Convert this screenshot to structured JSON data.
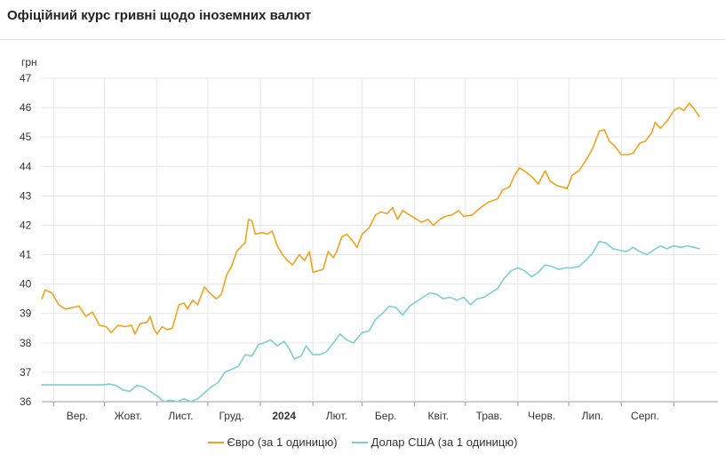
{
  "header": {
    "title": "Офіційний курс гривні щодо іноземних валют"
  },
  "colors": {
    "euro": "#f0a31e",
    "usd": "#7ccfcf",
    "grid": "#e6e6e6",
    "axis": "#999999"
  },
  "chart_data": {
    "type": "line",
    "title": "Офіційний курс гривні щодо іноземних валют",
    "ylabel": "грн",
    "ylim": [
      36,
      47
    ],
    "yticks": [
      36,
      37,
      38,
      39,
      40,
      41,
      42,
      43,
      44,
      45,
      46,
      47
    ],
    "xlim": [
      "2023-08-25",
      "2024-09-27"
    ],
    "grid": true,
    "legend_position": "bottom-center",
    "x_tick_labels": [
      {
        "label": "Вер.",
        "date": "2023-09-15",
        "bold": false
      },
      {
        "label": "Жовт.",
        "date": "2023-10-15",
        "bold": false
      },
      {
        "label": "Лист.",
        "date": "2023-11-15",
        "bold": false
      },
      {
        "label": "Груд.",
        "date": "2023-12-15",
        "bold": false
      },
      {
        "label": "2024",
        "date": "2024-01-15",
        "bold": true
      },
      {
        "label": "Лют.",
        "date": "2024-02-15",
        "bold": false
      },
      {
        "label": "Бер.",
        "date": "2024-03-15",
        "bold": false
      },
      {
        "label": "Квіт.",
        "date": "2024-04-15",
        "bold": false
      },
      {
        "label": "Трав.",
        "date": "2024-05-15",
        "bold": false
      },
      {
        "label": "Черв.",
        "date": "2024-06-15",
        "bold": false
      },
      {
        "label": "Лип.",
        "date": "2024-07-15",
        "bold": false
      },
      {
        "label": "Серп.",
        "date": "2024-08-15",
        "bold": false
      }
    ],
    "x_gridlines": [
      "2023-09-01",
      "2023-10-01",
      "2023-11-01",
      "2023-12-01",
      "2024-01-01",
      "2024-02-01",
      "2024-03-01",
      "2024-04-01",
      "2024-05-01",
      "2024-06-01",
      "2024-07-01",
      "2024-08-01",
      "2024-09-01"
    ],
    "series": [
      {
        "name": "Євро (за 1 одиницю)",
        "color": "#f0a31e",
        "points": [
          [
            "2023-08-25",
            39.5
          ],
          [
            "2023-08-27",
            39.8
          ],
          [
            "2023-08-31",
            39.7
          ],
          [
            "2023-09-04",
            39.3
          ],
          [
            "2023-09-08",
            39.15
          ],
          [
            "2023-09-12",
            39.2
          ],
          [
            "2023-09-16",
            39.25
          ],
          [
            "2023-09-20",
            38.9
          ],
          [
            "2023-09-24",
            39.05
          ],
          [
            "2023-09-28",
            38.6
          ],
          [
            "2023-10-02",
            38.55
          ],
          [
            "2023-10-05",
            38.35
          ],
          [
            "2023-10-09",
            38.6
          ],
          [
            "2023-10-13",
            38.55
          ],
          [
            "2023-10-17",
            38.6
          ],
          [
            "2023-10-19",
            38.3
          ],
          [
            "2023-10-22",
            38.65
          ],
          [
            "2023-10-26",
            38.7
          ],
          [
            "2023-10-28",
            38.9
          ],
          [
            "2023-10-30",
            38.5
          ],
          [
            "2023-11-01",
            38.3
          ],
          [
            "2023-11-04",
            38.55
          ],
          [
            "2023-11-07",
            38.45
          ],
          [
            "2023-11-10",
            38.5
          ],
          [
            "2023-11-14",
            39.3
          ],
          [
            "2023-11-17",
            39.35
          ],
          [
            "2023-11-19",
            39.15
          ],
          [
            "2023-11-22",
            39.45
          ],
          [
            "2023-11-25",
            39.3
          ],
          [
            "2023-11-27",
            39.6
          ],
          [
            "2023-11-29",
            39.9
          ],
          [
            "2023-12-02",
            39.7
          ],
          [
            "2023-12-06",
            39.5
          ],
          [
            "2023-12-09",
            39.65
          ],
          [
            "2023-12-12",
            40.3
          ],
          [
            "2023-12-15",
            40.6
          ],
          [
            "2023-12-18",
            41.1
          ],
          [
            "2023-12-21",
            41.3
          ],
          [
            "2023-12-23",
            41.4
          ],
          [
            "2023-12-25",
            42.2
          ],
          [
            "2023-12-27",
            42.15
          ],
          [
            "2023-12-29",
            41.7
          ],
          [
            "2024-01-02",
            41.75
          ],
          [
            "2024-01-05",
            41.7
          ],
          [
            "2024-01-08",
            41.8
          ],
          [
            "2024-01-11",
            41.3
          ],
          [
            "2024-01-14",
            41.0
          ],
          [
            "2024-01-17",
            40.8
          ],
          [
            "2024-01-20",
            40.65
          ],
          [
            "2024-01-24",
            41.0
          ],
          [
            "2024-01-27",
            40.8
          ],
          [
            "2024-01-30",
            41.1
          ],
          [
            "2024-02-01",
            40.4
          ],
          [
            "2024-02-04",
            40.45
          ],
          [
            "2024-02-07",
            40.5
          ],
          [
            "2024-02-10",
            41.1
          ],
          [
            "2024-02-13",
            40.9
          ],
          [
            "2024-02-15",
            41.1
          ],
          [
            "2024-02-18",
            41.6
          ],
          [
            "2024-02-21",
            41.7
          ],
          [
            "2024-02-24",
            41.5
          ],
          [
            "2024-02-27",
            41.25
          ],
          [
            "2024-03-01",
            41.7
          ],
          [
            "2024-03-05",
            41.9
          ],
          [
            "2024-03-09",
            42.35
          ],
          [
            "2024-03-12",
            42.45
          ],
          [
            "2024-03-16",
            42.4
          ],
          [
            "2024-03-19",
            42.6
          ],
          [
            "2024-03-22",
            42.2
          ],
          [
            "2024-03-25",
            42.5
          ],
          [
            "2024-03-29",
            42.35
          ],
          [
            "2024-04-01",
            42.25
          ],
          [
            "2024-04-05",
            42.1
          ],
          [
            "2024-04-09",
            42.2
          ],
          [
            "2024-04-12",
            42.0
          ],
          [
            "2024-04-16",
            42.2
          ],
          [
            "2024-04-19",
            42.3
          ],
          [
            "2024-04-23",
            42.35
          ],
          [
            "2024-04-27",
            42.5
          ],
          [
            "2024-04-30",
            42.3
          ],
          [
            "2024-05-05",
            42.35
          ],
          [
            "2024-05-10",
            42.6
          ],
          [
            "2024-05-15",
            42.8
          ],
          [
            "2024-05-20",
            42.9
          ],
          [
            "2024-05-23",
            43.2
          ],
          [
            "2024-05-27",
            43.3
          ],
          [
            "2024-05-30",
            43.7
          ],
          [
            "2024-06-02",
            43.95
          ],
          [
            "2024-06-06",
            43.8
          ],
          [
            "2024-06-10",
            43.6
          ],
          [
            "2024-06-13",
            43.4
          ],
          [
            "2024-06-17",
            43.85
          ],
          [
            "2024-06-20",
            43.5
          ],
          [
            "2024-06-24",
            43.35
          ],
          [
            "2024-06-27",
            43.3
          ],
          [
            "2024-06-30",
            43.25
          ],
          [
            "2024-07-03",
            43.7
          ],
          [
            "2024-07-07",
            43.85
          ],
          [
            "2024-07-11",
            44.2
          ],
          [
            "2024-07-15",
            44.6
          ],
          [
            "2024-07-19",
            45.2
          ],
          [
            "2024-07-22",
            45.25
          ],
          [
            "2024-07-25",
            44.85
          ],
          [
            "2024-07-28",
            44.7
          ],
          [
            "2024-08-01",
            44.4
          ],
          [
            "2024-08-05",
            44.4
          ],
          [
            "2024-08-08",
            44.45
          ],
          [
            "2024-08-12",
            44.8
          ],
          [
            "2024-08-15",
            44.85
          ],
          [
            "2024-08-19",
            45.15
          ],
          [
            "2024-08-21",
            45.5
          ],
          [
            "2024-08-24",
            45.3
          ],
          [
            "2024-08-28",
            45.55
          ],
          [
            "2024-09-01",
            45.9
          ],
          [
            "2024-09-04",
            46.0
          ],
          [
            "2024-09-07",
            45.9
          ],
          [
            "2024-09-10",
            46.15
          ],
          [
            "2024-09-13",
            45.95
          ],
          [
            "2024-09-16",
            45.7
          ]
        ]
      },
      {
        "name": "Долар США (за 1 одиницю)",
        "color": "#7ccfcf",
        "points": [
          [
            "2023-08-25",
            36.57
          ],
          [
            "2023-09-01",
            36.57
          ],
          [
            "2023-09-10",
            36.57
          ],
          [
            "2023-09-20",
            36.57
          ],
          [
            "2023-09-30",
            36.57
          ],
          [
            "2023-10-04",
            36.6
          ],
          [
            "2023-10-08",
            36.55
          ],
          [
            "2023-10-12",
            36.4
          ],
          [
            "2023-10-16",
            36.35
          ],
          [
            "2023-10-20",
            36.55
          ],
          [
            "2023-10-24",
            36.5
          ],
          [
            "2023-10-28",
            36.35
          ],
          [
            "2023-11-01",
            36.2
          ],
          [
            "2023-11-05",
            36.0
          ],
          [
            "2023-11-09",
            36.05
          ],
          [
            "2023-11-13",
            36.0
          ],
          [
            "2023-11-17",
            36.1
          ],
          [
            "2023-11-21",
            36.0
          ],
          [
            "2023-11-25",
            36.1
          ],
          [
            "2023-11-29",
            36.3
          ],
          [
            "2023-12-03",
            36.5
          ],
          [
            "2023-12-07",
            36.65
          ],
          [
            "2023-12-11",
            37.0
          ],
          [
            "2023-12-15",
            37.1
          ],
          [
            "2023-12-19",
            37.2
          ],
          [
            "2023-12-23",
            37.6
          ],
          [
            "2023-12-27",
            37.55
          ],
          [
            "2023-12-31",
            37.95
          ],
          [
            "2024-01-03",
            38.0
          ],
          [
            "2024-01-07",
            38.1
          ],
          [
            "2024-01-11",
            37.9
          ],
          [
            "2024-01-15",
            38.05
          ],
          [
            "2024-01-18",
            37.8
          ],
          [
            "2024-01-21",
            37.45
          ],
          [
            "2024-01-25",
            37.55
          ],
          [
            "2024-01-28",
            37.9
          ],
          [
            "2024-02-01",
            37.6
          ],
          [
            "2024-02-05",
            37.6
          ],
          [
            "2024-02-09",
            37.7
          ],
          [
            "2024-02-13",
            38.0
          ],
          [
            "2024-02-17",
            38.3
          ],
          [
            "2024-02-21",
            38.1
          ],
          [
            "2024-02-25",
            38.0
          ],
          [
            "2024-03-01",
            38.35
          ],
          [
            "2024-03-05",
            38.4
          ],
          [
            "2024-03-09",
            38.8
          ],
          [
            "2024-03-13",
            39.0
          ],
          [
            "2024-03-17",
            39.25
          ],
          [
            "2024-03-21",
            39.2
          ],
          [
            "2024-03-25",
            38.95
          ],
          [
            "2024-03-29",
            39.25
          ],
          [
            "2024-04-02",
            39.4
          ],
          [
            "2024-04-06",
            39.55
          ],
          [
            "2024-04-10",
            39.7
          ],
          [
            "2024-04-14",
            39.65
          ],
          [
            "2024-04-18",
            39.5
          ],
          [
            "2024-04-22",
            39.55
          ],
          [
            "2024-04-26",
            39.45
          ],
          [
            "2024-04-30",
            39.55
          ],
          [
            "2024-05-04",
            39.3
          ],
          [
            "2024-05-08",
            39.5
          ],
          [
            "2024-05-12",
            39.55
          ],
          [
            "2024-05-16",
            39.7
          ],
          [
            "2024-05-20",
            39.85
          ],
          [
            "2024-05-24",
            40.2
          ],
          [
            "2024-05-28",
            40.45
          ],
          [
            "2024-06-01",
            40.55
          ],
          [
            "2024-06-05",
            40.45
          ],
          [
            "2024-06-09",
            40.25
          ],
          [
            "2024-06-13",
            40.4
          ],
          [
            "2024-06-17",
            40.65
          ],
          [
            "2024-06-21",
            40.6
          ],
          [
            "2024-06-25",
            40.5
          ],
          [
            "2024-06-29",
            40.55
          ],
          [
            "2024-07-03",
            40.55
          ],
          [
            "2024-07-07",
            40.6
          ],
          [
            "2024-07-11",
            40.8
          ],
          [
            "2024-07-15",
            41.05
          ],
          [
            "2024-07-19",
            41.45
          ],
          [
            "2024-07-23",
            41.4
          ],
          [
            "2024-07-27",
            41.2
          ],
          [
            "2024-07-31",
            41.15
          ],
          [
            "2024-08-04",
            41.1
          ],
          [
            "2024-08-08",
            41.25
          ],
          [
            "2024-08-12",
            41.1
          ],
          [
            "2024-08-16",
            41.0
          ],
          [
            "2024-08-20",
            41.15
          ],
          [
            "2024-08-24",
            41.3
          ],
          [
            "2024-08-28",
            41.2
          ],
          [
            "2024-09-01",
            41.3
          ],
          [
            "2024-09-05",
            41.25
          ],
          [
            "2024-09-09",
            41.3
          ],
          [
            "2024-09-13",
            41.25
          ],
          [
            "2024-09-16",
            41.2
          ]
        ]
      }
    ]
  },
  "legend": {
    "items": [
      {
        "label": "Євро (за 1 одиницю)"
      },
      {
        "label": "Долар США (за 1 одиницю)"
      }
    ]
  }
}
